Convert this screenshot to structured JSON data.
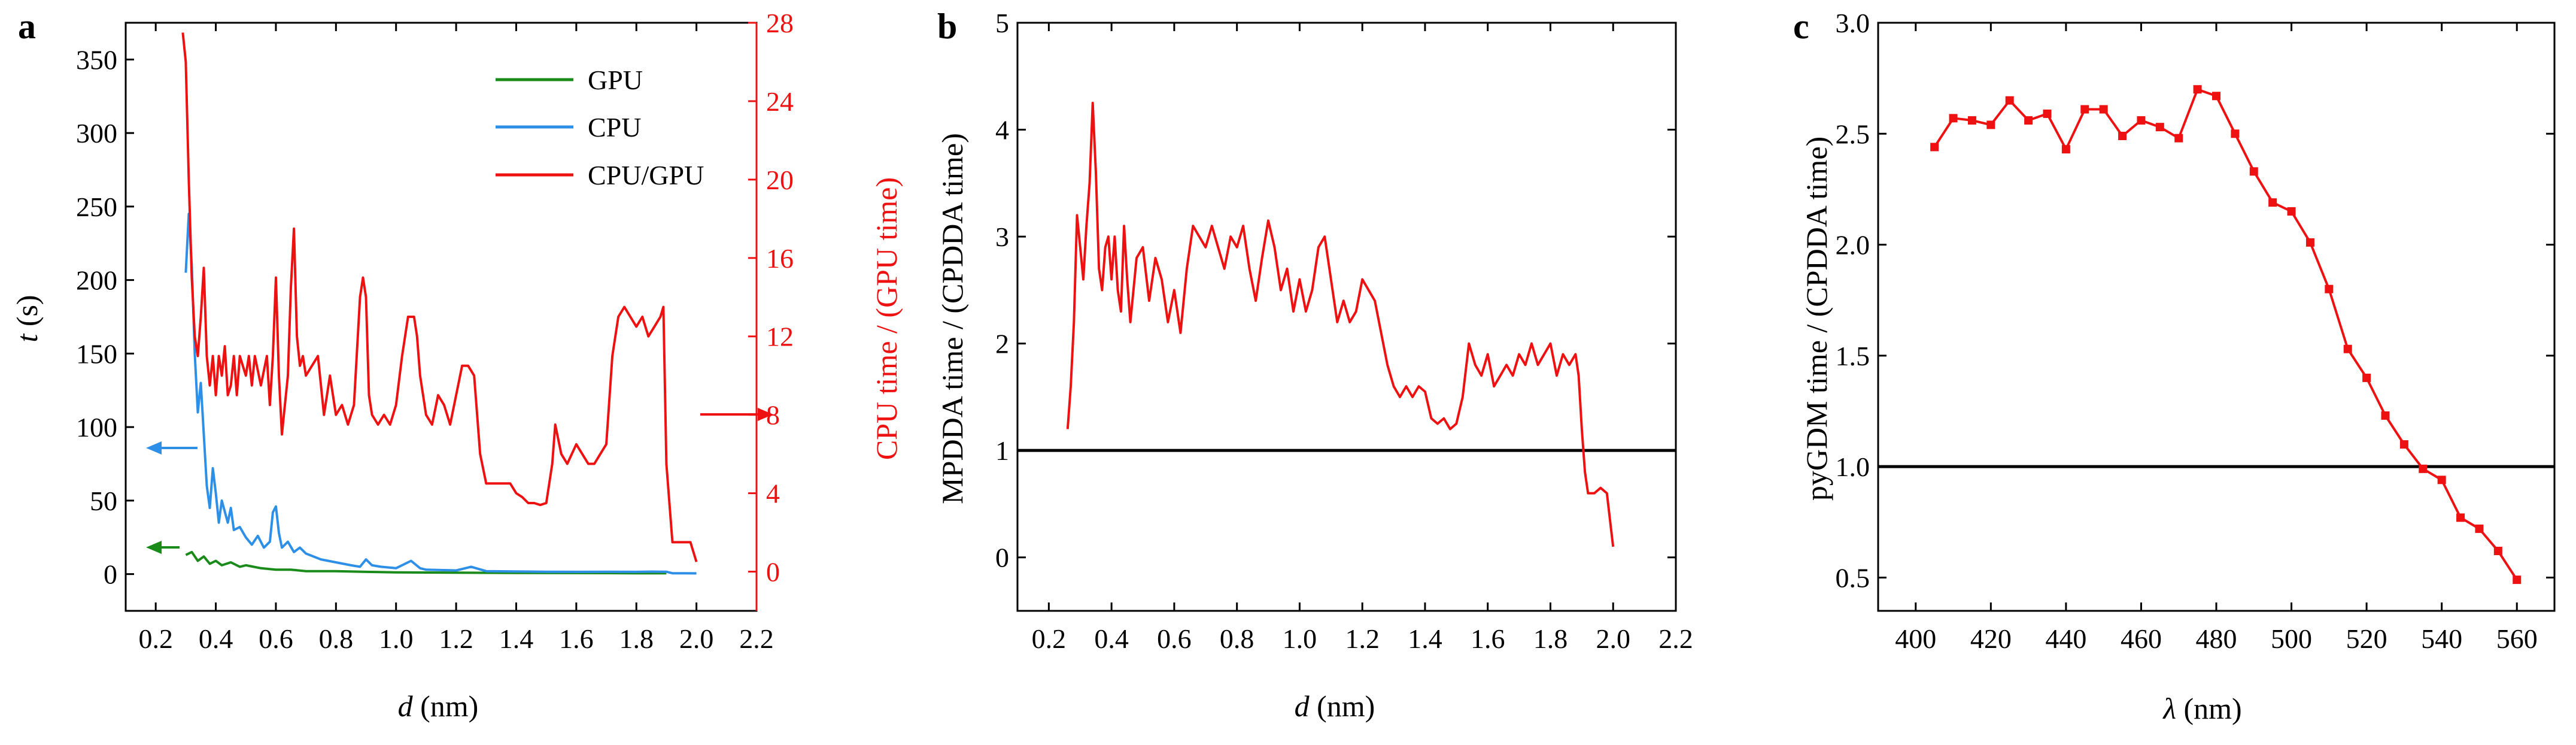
{
  "colors": {
    "gpu": "#1a8a1a",
    "cpu": "#2e8fe6",
    "ratio": "#ee1111",
    "axis": "#000000",
    "baseline": "#000000"
  },
  "chart_data": [
    {
      "panel": "a",
      "type": "line",
      "title": "",
      "xlabel_italic": "d",
      "xlabel_rest": " (nm)",
      "ylabel_italic": "t",
      "ylabel_rest": " (s)",
      "y2label": "CPU time / (GPU time)",
      "xlim": [
        0.1,
        2.2
      ],
      "ylim": [
        -25,
        375
      ],
      "y2lim": [
        -2,
        28
      ],
      "xticks": [
        0.2,
        0.4,
        0.6,
        0.8,
        1.0,
        1.2,
        1.4,
        1.6,
        1.8,
        2.0,
        2.2
      ],
      "xtick_labels": [
        "0.2",
        "0.4",
        "0.6",
        "0.8",
        "1.0",
        "1.2",
        "1.4",
        "1.6",
        "1.8",
        "2.0",
        "2.2"
      ],
      "yticks": [
        0,
        50,
        100,
        150,
        200,
        250,
        300,
        350
      ],
      "ytick_labels": [
        "0",
        "50",
        "100",
        "150",
        "200",
        "250",
        "300",
        "350"
      ],
      "y2ticks": [
        0,
        4,
        8,
        12,
        16,
        20,
        24,
        28
      ],
      "y2tick_labels": [
        "0",
        "4",
        "8",
        "12",
        "16",
        "20",
        "24",
        "28"
      ],
      "legend": [
        "GPU",
        "CPU",
        "CPU/GPU"
      ],
      "legend_position": "top-right",
      "series": [
        {
          "name": "GPU",
          "axis": "left",
          "color": "#1a8a1a",
          "x": [
            0.3,
            0.32,
            0.34,
            0.36,
            0.38,
            0.4,
            0.42,
            0.45,
            0.48,
            0.5,
            0.55,
            0.6,
            0.65,
            0.7,
            0.8,
            0.9,
            1.0,
            1.2,
            1.4,
            1.6,
            1.8,
            1.9
          ],
          "y": [
            13,
            15,
            9,
            12,
            7,
            9,
            6,
            8,
            5,
            6,
            4,
            3,
            3,
            2,
            2,
            1.5,
            1.2,
            1,
            0.8,
            0.7,
            0.6,
            0.6
          ]
        },
        {
          "name": "CPU",
          "axis": "left",
          "color": "#2e8fe6",
          "x": [
            0.3,
            0.31,
            0.32,
            0.33,
            0.34,
            0.35,
            0.36,
            0.37,
            0.38,
            0.39,
            0.4,
            0.41,
            0.42,
            0.44,
            0.45,
            0.46,
            0.48,
            0.5,
            0.52,
            0.54,
            0.56,
            0.58,
            0.59,
            0.6,
            0.61,
            0.62,
            0.64,
            0.66,
            0.68,
            0.7,
            0.75,
            0.8,
            0.85,
            0.88,
            0.9,
            0.92,
            0.95,
            1.0,
            1.05,
            1.08,
            1.1,
            1.2,
            1.25,
            1.3,
            1.4,
            1.5,
            1.6,
            1.7,
            1.8,
            1.85,
            1.9,
            1.92,
            2.0
          ],
          "y": [
            205,
            245,
            210,
            150,
            110,
            130,
            95,
            60,
            45,
            72,
            55,
            35,
            50,
            35,
            45,
            30,
            32,
            25,
            20,
            26,
            18,
            22,
            42,
            46,
            28,
            18,
            22,
            15,
            18,
            14,
            10,
            8,
            6,
            5,
            10,
            6,
            5,
            4,
            9,
            4,
            3,
            2.5,
            5,
            2,
            1.8,
            1.6,
            1.5,
            1.6,
            1.5,
            1.7,
            1.6,
            0.6,
            0.5
          ]
        },
        {
          "name": "CPU/GPU",
          "axis": "right",
          "color": "#ee1111",
          "x": [
            0.29,
            0.3,
            0.31,
            0.32,
            0.33,
            0.34,
            0.35,
            0.36,
            0.37,
            0.38,
            0.39,
            0.4,
            0.41,
            0.42,
            0.43,
            0.44,
            0.45,
            0.46,
            0.47,
            0.48,
            0.49,
            0.5,
            0.51,
            0.52,
            0.53,
            0.55,
            0.57,
            0.58,
            0.59,
            0.6,
            0.61,
            0.62,
            0.63,
            0.64,
            0.65,
            0.66,
            0.67,
            0.68,
            0.69,
            0.7,
            0.72,
            0.74,
            0.76,
            0.78,
            0.8,
            0.82,
            0.84,
            0.86,
            0.88,
            0.89,
            0.9,
            0.91,
            0.92,
            0.94,
            0.96,
            0.98,
            1.0,
            1.02,
            1.04,
            1.06,
            1.07,
            1.08,
            1.1,
            1.12,
            1.14,
            1.16,
            1.18,
            1.2,
            1.22,
            1.24,
            1.26,
            1.28,
            1.3,
            1.32,
            1.34,
            1.36,
            1.38,
            1.4,
            1.42,
            1.44,
            1.46,
            1.48,
            1.5,
            1.52,
            1.53,
            1.55,
            1.57,
            1.6,
            1.64,
            1.66,
            1.68,
            1.7,
            1.72,
            1.74,
            1.76,
            1.78,
            1.8,
            1.82,
            1.84,
            1.86,
            1.88,
            1.89,
            1.9,
            1.92,
            1.95,
            1.98,
            2.0
          ],
          "y": [
            27.5,
            26,
            20,
            15,
            12,
            11,
            13,
            15.5,
            11,
            9.5,
            11,
            9,
            11,
            10,
            11.5,
            9,
            9.5,
            11,
            9,
            11,
            10.5,
            10,
            11,
            9.5,
            11,
            9.5,
            11,
            8.5,
            11,
            15,
            10,
            7,
            8.5,
            10,
            14.5,
            17.5,
            12,
            10.5,
            11,
            10,
            10.5,
            11,
            8,
            10,
            8,
            8.5,
            7.5,
            8.5,
            14,
            15,
            14,
            9,
            8,
            7.5,
            8,
            7.5,
            8.5,
            11,
            13,
            13,
            12,
            10,
            8,
            7.5,
            9,
            8.5,
            7.5,
            9,
            10.5,
            10.5,
            10,
            6,
            4.5,
            4.5,
            4.5,
            4.5,
            4.5,
            4,
            3.8,
            3.5,
            3.5,
            3.4,
            3.5,
            5.5,
            7.5,
            6,
            5.5,
            6.5,
            5.5,
            5.5,
            6,
            6.5,
            11,
            13,
            13.5,
            13,
            12.5,
            13,
            12,
            12.5,
            13,
            13.5,
            5.5,
            1.5,
            1.5,
            1.5,
            0.5
          ]
        }
      ]
    },
    {
      "panel": "b",
      "type": "line",
      "title": "",
      "xlabel_italic": "d",
      "xlabel_rest": " (nm)",
      "ylabel": "MPDDA time / (CPDDA time)",
      "xlim": [
        0.1,
        2.2
      ],
      "ylim": [
        -0.5,
        5
      ],
      "xticks": [
        0.2,
        0.4,
        0.6,
        0.8,
        1.0,
        1.2,
        1.4,
        1.6,
        1.8,
        2.0,
        2.2
      ],
      "xtick_labels": [
        "0.2",
        "0.4",
        "0.6",
        "0.8",
        "1.0",
        "1.2",
        "1.4",
        "1.6",
        "1.8",
        "2.0",
        "2.2"
      ],
      "yticks": [
        0,
        1,
        2,
        3,
        4,
        5
      ],
      "ytick_labels": [
        "0",
        "1",
        "2",
        "3",
        "4",
        "5"
      ],
      "reference_line_y": 1,
      "series": [
        {
          "name": "MPDDA/CPDDA",
          "color": "#ee1111",
          "x": [
            0.26,
            0.27,
            0.28,
            0.29,
            0.3,
            0.31,
            0.32,
            0.33,
            0.34,
            0.35,
            0.36,
            0.37,
            0.38,
            0.39,
            0.4,
            0.41,
            0.42,
            0.43,
            0.44,
            0.45,
            0.46,
            0.47,
            0.48,
            0.5,
            0.52,
            0.54,
            0.56,
            0.58,
            0.6,
            0.62,
            0.64,
            0.66,
            0.68,
            0.7,
            0.72,
            0.74,
            0.76,
            0.78,
            0.8,
            0.82,
            0.84,
            0.86,
            0.88,
            0.9,
            0.92,
            0.94,
            0.96,
            0.98,
            1.0,
            1.02,
            1.04,
            1.06,
            1.08,
            1.1,
            1.12,
            1.14,
            1.16,
            1.18,
            1.2,
            1.22,
            1.24,
            1.26,
            1.28,
            1.3,
            1.32,
            1.34,
            1.36,
            1.38,
            1.4,
            1.42,
            1.44,
            1.46,
            1.48,
            1.5,
            1.52,
            1.54,
            1.56,
            1.58,
            1.6,
            1.62,
            1.64,
            1.66,
            1.68,
            1.7,
            1.72,
            1.74,
            1.76,
            1.78,
            1.8,
            1.82,
            1.84,
            1.86,
            1.88,
            1.89,
            1.9,
            1.91,
            1.92,
            1.94,
            1.96,
            1.98,
            2.0
          ],
          "y": [
            1.2,
            1.6,
            2.2,
            3.2,
            2.9,
            2.6,
            3.1,
            3.5,
            4.25,
            3.6,
            2.7,
            2.5,
            2.9,
            3.0,
            2.6,
            3.0,
            2.5,
            2.3,
            3.1,
            2.6,
            2.2,
            2.5,
            2.8,
            2.9,
            2.4,
            2.8,
            2.6,
            2.2,
            2.5,
            2.1,
            2.7,
            3.1,
            3.0,
            2.9,
            3.1,
            2.9,
            2.7,
            3.0,
            2.9,
            3.1,
            2.7,
            2.4,
            2.8,
            3.15,
            2.9,
            2.5,
            2.7,
            2.3,
            2.6,
            2.3,
            2.5,
            2.9,
            3.0,
            2.6,
            2.2,
            2.4,
            2.2,
            2.3,
            2.6,
            2.5,
            2.4,
            2.1,
            1.8,
            1.6,
            1.5,
            1.6,
            1.5,
            1.6,
            1.55,
            1.3,
            1.25,
            1.3,
            1.2,
            1.25,
            1.5,
            2.0,
            1.8,
            1.7,
            1.9,
            1.6,
            1.7,
            1.8,
            1.7,
            1.9,
            1.8,
            2.0,
            1.8,
            1.9,
            2.0,
            1.7,
            1.9,
            1.8,
            1.9,
            1.7,
            1.2,
            0.8,
            0.6,
            0.6,
            0.65,
            0.6,
            0.1
          ]
        }
      ]
    },
    {
      "panel": "c",
      "type": "line",
      "title": "",
      "xlabel_italic": "λ",
      "xlabel_rest": " (nm)",
      "ylabel": "pyGDM time / (CPDDA time)",
      "xlim": [
        390,
        570
      ],
      "ylim": [
        0.35,
        3.0
      ],
      "xticks": [
        400,
        420,
        440,
        460,
        480,
        500,
        520,
        540,
        560
      ],
      "xtick_labels": [
        "400",
        "420",
        "440",
        "460",
        "480",
        "500",
        "520",
        "540",
        "560"
      ],
      "yticks": [
        0.5,
        1.0,
        1.5,
        2.0,
        2.5,
        3.0
      ],
      "ytick_labels": [
        "0.5",
        "1.0",
        "1.5",
        "2.0",
        "2.5",
        "3.0"
      ],
      "reference_line_y": 1,
      "markers": "square",
      "series": [
        {
          "name": "pyGDM/CPDDA",
          "color": "#ee1111",
          "x": [
            405,
            410,
            415,
            420,
            425,
            430,
            435,
            440,
            445,
            450,
            455,
            460,
            465,
            470,
            475,
            480,
            485,
            490,
            495,
            500,
            505,
            510,
            515,
            520,
            525,
            530,
            535,
            540,
            545,
            550,
            555,
            560
          ],
          "y": [
            2.44,
            2.57,
            2.56,
            2.54,
            2.65,
            2.56,
            2.59,
            2.43,
            2.61,
            2.61,
            2.49,
            2.56,
            2.53,
            2.48,
            2.7,
            2.67,
            2.5,
            2.33,
            2.19,
            2.15,
            2.01,
            1.8,
            1.53,
            1.4,
            1.23,
            1.1,
            0.99,
            0.94,
            0.77,
            0.72,
            0.62,
            0.49
          ]
        }
      ]
    }
  ]
}
